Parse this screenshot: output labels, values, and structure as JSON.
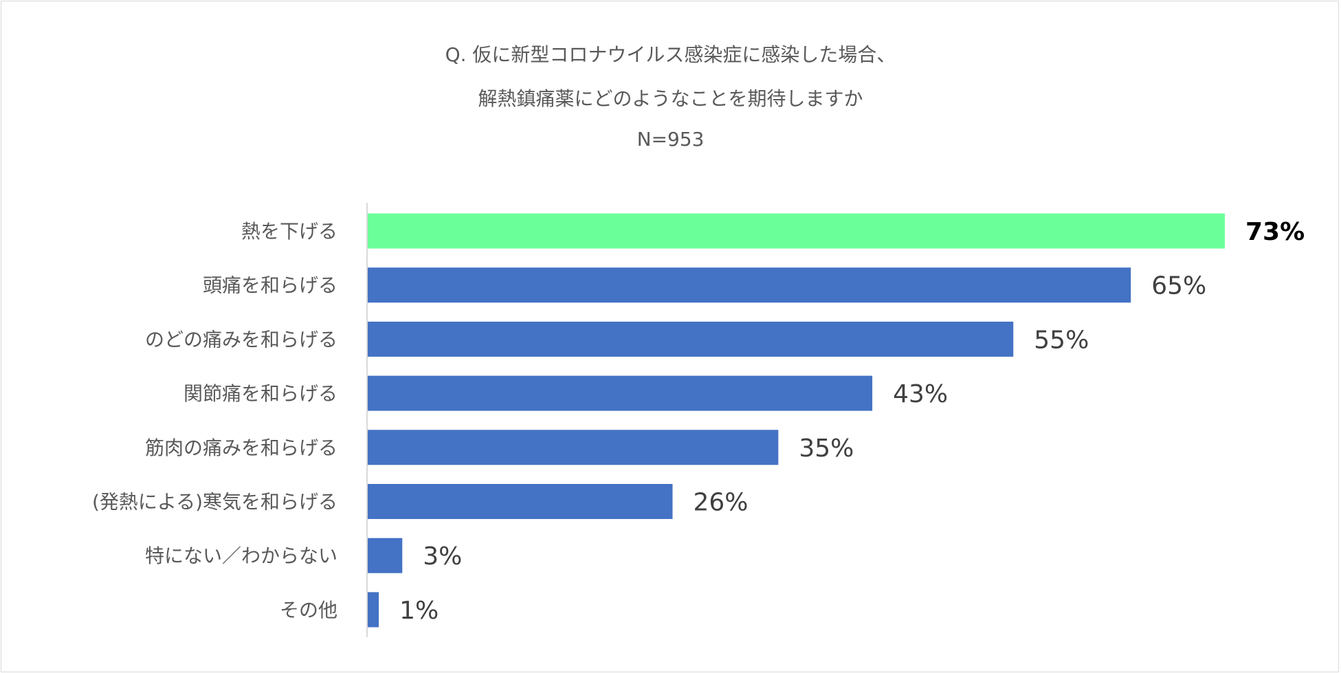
{
  "chart_data": {
    "type": "bar",
    "orientation": "horizontal",
    "title": [
      "Q. 仮に新型コロナウイルス感染症に感染した場合、",
      "解熱鎮痛薬にどのようなことを期待しますか",
      "N=953"
    ],
    "categories": [
      "熱を下げる",
      "頭痛を和らげる",
      "のどの痛みを和らげる",
      "関節痛を和らげる",
      "筋肉の痛みを和らげる",
      "(発熱による)寒気を和らげる",
      "特にない／わからない",
      "その他"
    ],
    "values": [
      73,
      65,
      55,
      43,
      35,
      26,
      3,
      1
    ],
    "labels": [
      "73%",
      "65%",
      "55%",
      "43%",
      "35%",
      "26%",
      "3%",
      "1%"
    ],
    "highlight_index": 0,
    "xlabel": "",
    "ylabel": "",
    "xlim": [
      0,
      73
    ],
    "grid": false,
    "legend": "none",
    "colors": {
      "highlight": "#6bff99",
      "bar": "#4472c4",
      "axis": "#d9d9d9"
    }
  }
}
